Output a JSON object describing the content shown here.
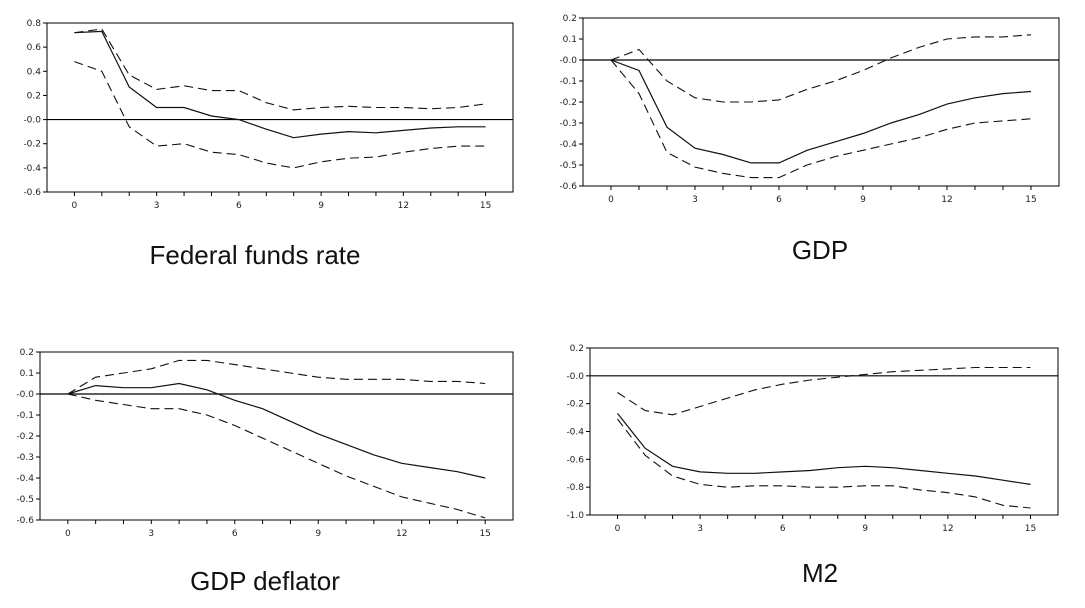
{
  "chart_data": [
    {
      "type": "line",
      "title": "Federal funds rate",
      "x": [
        0,
        1,
        2,
        3,
        4,
        5,
        6,
        7,
        8,
        9,
        10,
        11,
        12,
        13,
        14,
        15
      ],
      "xticks": [
        0,
        3,
        6,
        9,
        12,
        15
      ],
      "xtick_labels": [
        "0",
        "3",
        "6",
        "9",
        "12",
        "15"
      ],
      "ylim": [
        -0.6,
        0.8
      ],
      "yticks": [
        0.8,
        0.6,
        0.4,
        0.2,
        0.0,
        -0.2,
        -0.4,
        -0.6
      ],
      "ytick_labels": [
        "0.8",
        "0.6",
        "0.4",
        "0.2",
        "-0.0",
        "-0.2",
        "-0.4",
        "-0.6"
      ],
      "series": [
        {
          "name": "response",
          "style": "solid",
          "values": [
            0.72,
            0.73,
            0.27,
            0.1,
            0.1,
            0.03,
            0.0,
            -0.08,
            -0.15,
            -0.12,
            -0.1,
            -0.11,
            -0.09,
            -0.07,
            -0.06,
            -0.06
          ]
        },
        {
          "name": "upper band",
          "style": "dashed",
          "values": [
            0.72,
            0.75,
            0.37,
            0.25,
            0.28,
            0.24,
            0.24,
            0.14,
            0.08,
            0.1,
            0.11,
            0.1,
            0.1,
            0.09,
            0.1,
            0.13
          ]
        },
        {
          "name": "lower band",
          "style": "dashed",
          "values": [
            0.48,
            0.4,
            -0.06,
            -0.22,
            -0.2,
            -0.27,
            -0.29,
            -0.36,
            -0.4,
            -0.35,
            -0.32,
            -0.31,
            -0.27,
            -0.24,
            -0.22,
            -0.22
          ]
        }
      ]
    },
    {
      "type": "line",
      "title": "GDP",
      "x": [
        0,
        1,
        2,
        3,
        4,
        5,
        6,
        7,
        8,
        9,
        10,
        11,
        12,
        13,
        14,
        15
      ],
      "xticks": [
        0,
        3,
        6,
        9,
        12,
        15
      ],
      "xtick_labels": [
        "0",
        "3",
        "6",
        "9",
        "12",
        "15"
      ],
      "ylim": [
        -0.6,
        0.2
      ],
      "yticks": [
        0.2,
        0.1,
        0.0,
        -0.1,
        -0.2,
        -0.3,
        -0.4,
        -0.5,
        -0.6
      ],
      "ytick_labels": [
        "0.2",
        "0.1",
        "-0.0",
        "-0.1",
        "-0.2",
        "-0.3",
        "-0.4",
        "-0.5",
        "-0.6"
      ],
      "series": [
        {
          "name": "response",
          "style": "solid",
          "values": [
            0.0,
            -0.05,
            -0.32,
            -0.42,
            -0.45,
            -0.49,
            -0.49,
            -0.43,
            -0.39,
            -0.35,
            -0.3,
            -0.26,
            -0.21,
            -0.18,
            -0.16,
            -0.15
          ]
        },
        {
          "name": "upper band",
          "style": "dashed",
          "values": [
            0.0,
            0.05,
            -0.1,
            -0.18,
            -0.2,
            -0.2,
            -0.19,
            -0.14,
            -0.1,
            -0.05,
            0.01,
            0.06,
            0.1,
            0.11,
            0.11,
            0.12
          ]
        },
        {
          "name": "lower band",
          "style": "dashed",
          "values": [
            0.0,
            -0.16,
            -0.44,
            -0.51,
            -0.54,
            -0.56,
            -0.56,
            -0.5,
            -0.46,
            -0.43,
            -0.4,
            -0.37,
            -0.33,
            -0.3,
            -0.29,
            -0.28
          ]
        }
      ]
    },
    {
      "type": "line",
      "title": "GDP deflator",
      "x": [
        0,
        1,
        2,
        3,
        4,
        5,
        6,
        7,
        8,
        9,
        10,
        11,
        12,
        13,
        14,
        15
      ],
      "xticks": [
        0,
        3,
        6,
        9,
        12,
        15
      ],
      "xtick_labels": [
        "0",
        "3",
        "6",
        "9",
        "12",
        "15"
      ],
      "ylim": [
        -0.6,
        0.2
      ],
      "yticks": [
        0.2,
        0.1,
        0.0,
        -0.1,
        -0.2,
        -0.3,
        -0.4,
        -0.5,
        -0.6
      ],
      "ytick_labels": [
        "0.2",
        "0.1",
        "-0.0",
        "-0.1",
        "-0.2",
        "-0.3",
        "-0.4",
        "-0.5",
        "-0.6"
      ],
      "series": [
        {
          "name": "response",
          "style": "solid",
          "values": [
            0.0,
            0.04,
            0.03,
            0.03,
            0.05,
            0.02,
            -0.03,
            -0.07,
            -0.13,
            -0.19,
            -0.24,
            -0.29,
            -0.33,
            -0.35,
            -0.37,
            -0.4
          ]
        },
        {
          "name": "upper band",
          "style": "dashed",
          "values": [
            0.0,
            0.08,
            0.1,
            0.12,
            0.16,
            0.16,
            0.14,
            0.12,
            0.1,
            0.08,
            0.07,
            0.07,
            0.07,
            0.06,
            0.06,
            0.05
          ]
        },
        {
          "name": "lower band",
          "style": "dashed",
          "values": [
            0.0,
            -0.03,
            -0.05,
            -0.07,
            -0.07,
            -0.1,
            -0.15,
            -0.21,
            -0.27,
            -0.33,
            -0.39,
            -0.44,
            -0.49,
            -0.52,
            -0.55,
            -0.59
          ]
        }
      ]
    },
    {
      "type": "line",
      "title": "M2",
      "x": [
        0,
        1,
        2,
        3,
        4,
        5,
        6,
        7,
        8,
        9,
        10,
        11,
        12,
        13,
        14,
        15
      ],
      "xticks": [
        0,
        3,
        6,
        9,
        12,
        15
      ],
      "xtick_labels": [
        "0",
        "3",
        "6",
        "9",
        "12",
        "15"
      ],
      "ylim": [
        -1.0,
        0.2
      ],
      "yticks": [
        0.2,
        0.0,
        -0.2,
        -0.4,
        -0.6,
        -0.8,
        -1.0
      ],
      "ytick_labels": [
        "0.2",
        "-0.0",
        "-0.2",
        "-0.4",
        "-0.6",
        "-0.8",
        "-1.0"
      ],
      "series": [
        {
          "name": "response",
          "style": "solid",
          "values": [
            -0.27,
            -0.52,
            -0.65,
            -0.69,
            -0.7,
            -0.7,
            -0.69,
            -0.68,
            -0.66,
            -0.65,
            -0.66,
            -0.68,
            -0.7,
            -0.72,
            -0.75,
            -0.78
          ]
        },
        {
          "name": "upper band",
          "style": "dashed",
          "values": [
            -0.12,
            -0.25,
            -0.28,
            -0.22,
            -0.16,
            -0.1,
            -0.06,
            -0.03,
            -0.01,
            0.01,
            0.03,
            0.04,
            0.05,
            0.06,
            0.06,
            0.06
          ]
        },
        {
          "name": "lower band",
          "style": "dashed",
          "values": [
            -0.31,
            -0.57,
            -0.72,
            -0.78,
            -0.8,
            -0.79,
            -0.79,
            -0.8,
            -0.8,
            -0.79,
            -0.79,
            -0.82,
            -0.84,
            -0.87,
            -0.93,
            -0.95
          ]
        }
      ]
    }
  ]
}
